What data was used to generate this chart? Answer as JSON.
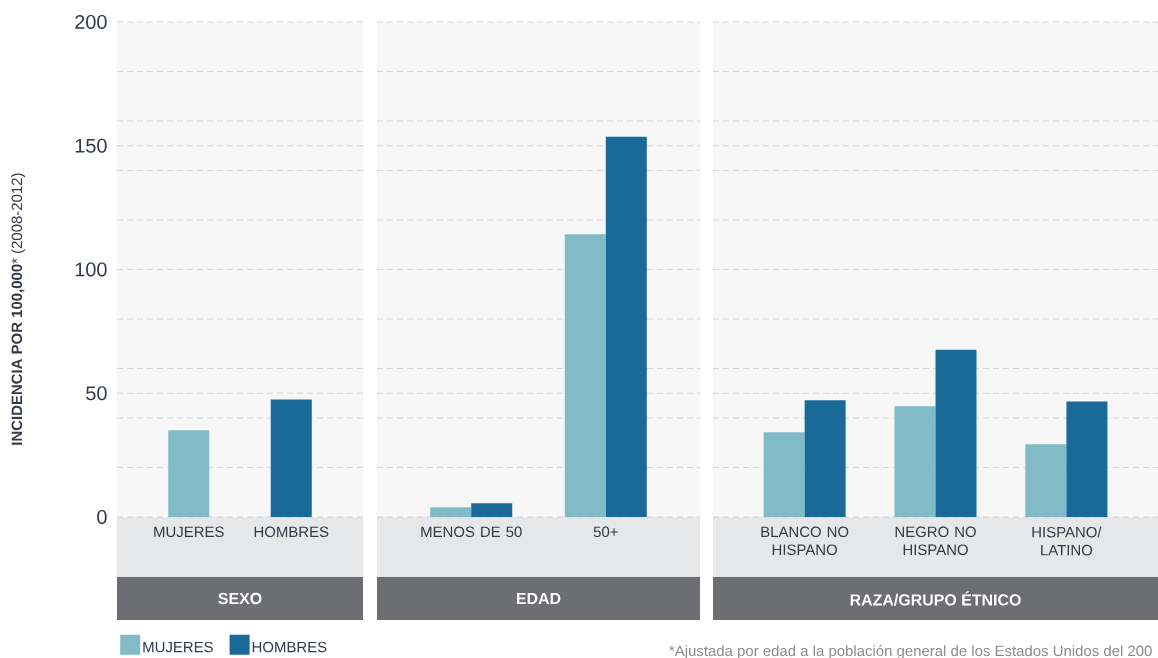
{
  "chart_data": [
    {
      "type": "bar",
      "xlabel": "SEXO",
      "ylabel": "**INCIDENCIA POR 100,000*** (2008-2012)",
      "categories": [
        "MUJERES",
        "HOMBRES"
      ],
      "series": [
        {
          "name": "MUJERES",
          "color": "#80bbc7",
          "values": [
            35.1,
            null
          ]
        },
        {
          "name": "HOMBRES",
          "color": "#196a98",
          "values": [
            null,
            47.5
          ]
        }
      ],
      "ylim": [
        0,
        200
      ],
      "yticks": [
        0,
        {
          "value": 20,
          "label": null
        },
        {
          "value": 40,
          "label": null
        },
        50,
        {
          "value": 60,
          "label": null
        },
        {
          "value": 80,
          "label": null
        },
        100,
        {
          "value": 120,
          "label": null
        },
        {
          "value": 140,
          "label": null
        },
        150,
        {
          "value": 160,
          "label": null
        },
        {
          "value": 180,
          "label": null
        },
        200
      ],
      "grid": "y",
      "legend": "bottom left"
    },
    {
      "type": "bar",
      "xlabel": "EDAD",
      "categories": [
        "MENOS DE 50",
        "50+"
      ],
      "series": [
        {
          "color": "#80bbc7",
          "values": [
            3.9,
            114.2
          ]
        },
        {
          "color": "#196a98",
          "values": [
            5.6,
            153.6
          ]
        }
      ],
      "ylim": [
        0,
        200
      ],
      "yticks": [
        0,
        {
          "value": 20,
          "label": null
        },
        {
          "value": 40,
          "label": null
        },
        50,
        {
          "value": 60,
          "label": null
        },
        {
          "value": 80,
          "label": null
        },
        100,
        {
          "value": 120,
          "label": null
        },
        {
          "value": 140,
          "label": null
        },
        150,
        {
          "value": 160,
          "label": null
        },
        {
          "value": 180,
          "label": null
        },
        200
      ],
      "grid": "y",
      "tick_labels": "x"
    },
    {
      "type": "bar",
      "xlabel": "RAZA/GRUPO ÉTNICO",
      "categories": [
        "BLANCO NO HISPANO",
        "NEGRO NO HISPANO",
        "HISPANO/ LATINO"
      ],
      "series": [
        {
          "color": "#80bbc7",
          "values": [
            34.2,
            44.7,
            29.4
          ]
        },
        {
          "color": "#196a98",
          "values": [
            47.2,
            67.6,
            46.7
          ]
        }
      ],
      "ylim": [
        0,
        200
      ],
      "yticks": [
        0,
        {
          "value": 20,
          "label": null
        },
        {
          "value": 40,
          "label": null
        },
        50,
        {
          "value": 60,
          "label": null
        },
        {
          "value": 80,
          "label": null
        },
        100,
        {
          "value": 120,
          "label": null
        },
        {
          "value": 140,
          "label": null
        },
        150,
        {
          "value": 160,
          "label": null
        },
        {
          "value": 180,
          "label": null
        },
        200
      ],
      "grid": "y",
      "tick_labels": "x",
      "annotations": [
        "*Ajustada por edad a la población general de los Estados Unidos del 200"
      ]
    }
  ]
}
